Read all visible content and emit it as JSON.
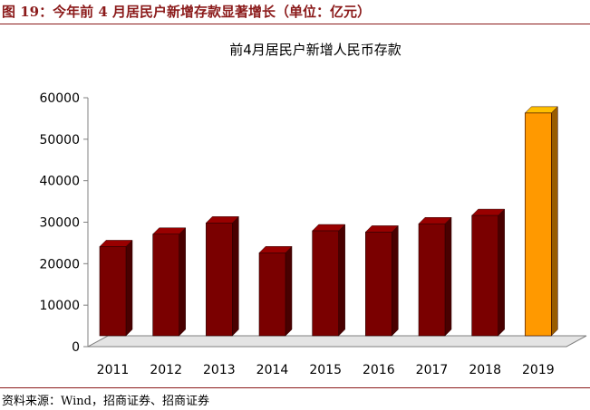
{
  "figure": {
    "title": "图 19：今年前 4 月居民户新增存款显著增长（单位：亿元）",
    "source": "资料来源：Wind，招商证券、招商证券"
  },
  "colors": {
    "brand": "#8b1a1a",
    "bar": "#7a0000",
    "highlight": "#ff9900"
  },
  "chart_data": {
    "type": "bar",
    "title": "前4月居民户新增人民币存款",
    "categories": [
      "2011",
      "2012",
      "2013",
      "2014",
      "2015",
      "2016",
      "2017",
      "2018",
      "2019"
    ],
    "values": [
      21500,
      24500,
      27200,
      20000,
      25300,
      25000,
      27000,
      29000,
      53700
    ],
    "highlight_index": 8,
    "ylim": [
      0,
      60000
    ],
    "yticks": [
      0,
      10000,
      20000,
      30000,
      40000,
      50000,
      60000
    ],
    "xlabel": "",
    "ylabel": "",
    "grid": false,
    "legend": "none",
    "style": "3d"
  }
}
